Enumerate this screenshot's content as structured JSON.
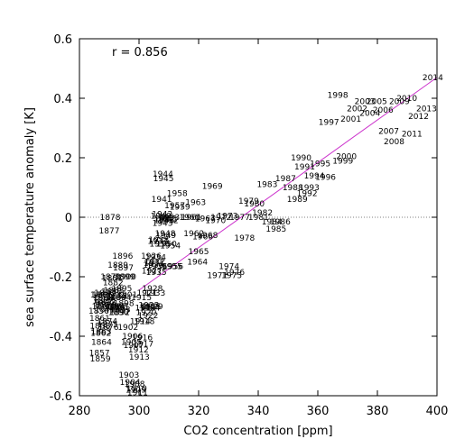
{
  "chart_data": {
    "type": "scatter",
    "title": "",
    "xlabel": "CO2 concentration [ppm]",
    "ylabel": "sea surface temperature anomaly [K]",
    "xlim": [
      280,
      400
    ],
    "ylim": [
      -0.6,
      0.6
    ],
    "xticks": [
      280,
      300,
      320,
      340,
      360,
      380,
      400
    ],
    "yticks": [
      -0.6,
      -0.4,
      -0.2,
      0,
      0.2,
      0.4,
      0.6
    ],
    "annotation": "r =  0.856",
    "zero_line": true,
    "grid": false,
    "colors": {
      "trend": "#cc33cc",
      "axis": "#000000",
      "zero_line": "#555555"
    },
    "trend_line": {
      "x": [
        300,
        400
      ],
      "y": [
        -0.245,
        0.47
      ]
    },
    "points": [
      {
        "label": "1856",
        "x": 286.5,
        "y": -0.315
      },
      {
        "label": "1857",
        "x": 286.7,
        "y": -0.456
      },
      {
        "label": "1858",
        "x": 286.9,
        "y": -0.365
      },
      {
        "label": "1859",
        "x": 287.0,
        "y": -0.475
      },
      {
        "label": "1860",
        "x": 287.1,
        "y": -0.26
      },
      {
        "label": "1861",
        "x": 286.8,
        "y": -0.34
      },
      {
        "label": "1862",
        "x": 287.2,
        "y": -0.39
      },
      {
        "label": "1863",
        "x": 287.3,
        "y": -0.385
      },
      {
        "label": "1864",
        "x": 287.4,
        "y": -0.42
      },
      {
        "label": "1865",
        "x": 287.6,
        "y": -0.3
      },
      {
        "label": "1866",
        "x": 287.7,
        "y": -0.26
      },
      {
        "label": "1867",
        "x": 287.9,
        "y": -0.28
      },
      {
        "label": "1868",
        "x": 288.0,
        "y": -0.27
      },
      {
        "label": "1869",
        "x": 288.2,
        "y": -0.29
      },
      {
        "label": "1870",
        "x": 288.4,
        "y": -0.255
      },
      {
        "label": "1871",
        "x": 288.6,
        "y": -0.31
      },
      {
        "label": "1872",
        "x": 288.8,
        "y": -0.285
      },
      {
        "label": "1873",
        "x": 289.0,
        "y": -0.295
      },
      {
        "label": "1874",
        "x": 289.3,
        "y": -0.35
      },
      {
        "label": "1875",
        "x": 289.5,
        "y": -0.36
      },
      {
        "label": "1876",
        "x": 289.7,
        "y": -0.37
      },
      {
        "label": "1877",
        "x": 290.0,
        "y": -0.045
      },
      {
        "label": "1878",
        "x": 290.3,
        "y": 0.0
      },
      {
        "label": "1879",
        "x": 290.5,
        "y": -0.2
      },
      {
        "label": "1880",
        "x": 290.8,
        "y": -0.25
      },
      {
        "label": "1881",
        "x": 291.0,
        "y": -0.205
      },
      {
        "label": "1882",
        "x": 291.3,
        "y": -0.22
      },
      {
        "label": "1883",
        "x": 291.5,
        "y": -0.245
      },
      {
        "label": "1884",
        "x": 291.7,
        "y": -0.3
      },
      {
        "label": "1885",
        "x": 292.0,
        "y": -0.305
      },
      {
        "label": "1886",
        "x": 292.2,
        "y": -0.27
      },
      {
        "label": "1887",
        "x": 292.4,
        "y": -0.3
      },
      {
        "label": "1888",
        "x": 292.6,
        "y": -0.265
      },
      {
        "label": "1889",
        "x": 292.9,
        "y": -0.16
      },
      {
        "label": "1890",
        "x": 293.1,
        "y": -0.32
      },
      {
        "label": "1891",
        "x": 293.3,
        "y": -0.3
      },
      {
        "label": "1892",
        "x": 293.5,
        "y": -0.32
      },
      {
        "label": "1893",
        "x": 293.7,
        "y": -0.31
      },
      {
        "label": "1894",
        "x": 294.0,
        "y": -0.27
      },
      {
        "label": "1895",
        "x": 294.2,
        "y": -0.24
      },
      {
        "label": "1896",
        "x": 294.5,
        "y": -0.13
      },
      {
        "label": "1897",
        "x": 294.7,
        "y": -0.17
      },
      {
        "label": "1898",
        "x": 294.9,
        "y": -0.29
      },
      {
        "label": "1899",
        "x": 295.2,
        "y": -0.2
      },
      {
        "label": "1900",
        "x": 295.6,
        "y": -0.2
      },
      {
        "label": "1901",
        "x": 296.0,
        "y": -0.26
      },
      {
        "label": "1902",
        "x": 296.3,
        "y": -0.37
      },
      {
        "label": "1903",
        "x": 296.6,
        "y": -0.53
      },
      {
        "label": "1904",
        "x": 297.0,
        "y": -0.555
      },
      {
        "label": "1905",
        "x": 297.4,
        "y": -0.42
      },
      {
        "label": "1906",
        "x": 297.8,
        "y": -0.4
      },
      {
        "label": "1907",
        "x": 298.2,
        "y": -0.43
      },
      {
        "label": "1908",
        "x": 298.5,
        "y": -0.56
      },
      {
        "label": "1909",
        "x": 298.9,
        "y": -0.58
      },
      {
        "label": "1910",
        "x": 299.2,
        "y": -0.575
      },
      {
        "label": "1911",
        "x": 299.5,
        "y": -0.59
      },
      {
        "label": "1912",
        "x": 299.8,
        "y": -0.445
      },
      {
        "label": "1913",
        "x": 300.1,
        "y": -0.47
      },
      {
        "label": "1914",
        "x": 300.4,
        "y": -0.35
      },
      {
        "label": "1915",
        "x": 300.8,
        "y": -0.27
      },
      {
        "label": "1916",
        "x": 301.1,
        "y": -0.405
      },
      {
        "label": "1917",
        "x": 301.4,
        "y": -0.425
      },
      {
        "label": "1918",
        "x": 301.8,
        "y": -0.35
      },
      {
        "label": "1919",
        "x": 302.1,
        "y": -0.305
      },
      {
        "label": "1920",
        "x": 302.4,
        "y": -0.32
      },
      {
        "label": "1921",
        "x": 302.7,
        "y": -0.255
      },
      {
        "label": "1922",
        "x": 303.0,
        "y": -0.33
      },
      {
        "label": "1923",
        "x": 303.3,
        "y": -0.295
      },
      {
        "label": "1924",
        "x": 303.6,
        "y": -0.305
      },
      {
        "label": "1925",
        "x": 303.9,
        "y": -0.3
      },
      {
        "label": "1926",
        "x": 304.1,
        "y": -0.13
      },
      {
        "label": "1927",
        "x": 304.3,
        "y": -0.18
      },
      {
        "label": "1928",
        "x": 304.5,
        "y": -0.24
      },
      {
        "label": "1929",
        "x": 304.6,
        "y": -0.3
      },
      {
        "label": "1930",
        "x": 304.8,
        "y": -0.16
      },
      {
        "label": "1931",
        "x": 305.0,
        "y": -0.155
      },
      {
        "label": "1932",
        "x": 305.2,
        "y": -0.15
      },
      {
        "label": "1933",
        "x": 305.4,
        "y": -0.255
      },
      {
        "label": "1934",
        "x": 305.6,
        "y": -0.135
      },
      {
        "label": "1935",
        "x": 305.8,
        "y": -0.185
      },
      {
        "label": "1936",
        "x": 306.0,
        "y": -0.165
      },
      {
        "label": "1937",
        "x": 306.3,
        "y": -0.08
      },
      {
        "label": "1938",
        "x": 306.6,
        "y": -0.075
      },
      {
        "label": "1939",
        "x": 306.9,
        "y": -0.09
      },
      {
        "label": "1940",
        "x": 307.3,
        "y": 0.005
      },
      {
        "label": "1941",
        "x": 307.6,
        "y": 0.06
      },
      {
        "label": "1942",
        "x": 307.8,
        "y": 0.01
      },
      {
        "label": "1943",
        "x": 307.9,
        "y": -0.02
      },
      {
        "label": "1944",
        "x": 308.0,
        "y": 0.145
      },
      {
        "label": "1945",
        "x": 308.2,
        "y": 0.13
      },
      {
        "label": "1946",
        "x": 308.4,
        "y": -0.01
      },
      {
        "label": "1947",
        "x": 308.6,
        "y": -0.005
      },
      {
        "label": "1948",
        "x": 308.8,
        "y": -0.055
      },
      {
        "label": "1949",
        "x": 309.0,
        "y": -0.06
      },
      {
        "label": "1950",
        "x": 309.2,
        "y": -0.09
      },
      {
        "label": "1951",
        "x": 309.5,
        "y": -0.005
      },
      {
        "label": "1952",
        "x": 309.8,
        "y": -0.01
      },
      {
        "label": "1953",
        "x": 310.2,
        "y": 0.0
      },
      {
        "label": "1954",
        "x": 310.5,
        "y": -0.095
      },
      {
        "label": "1955",
        "x": 311.0,
        "y": -0.165
      },
      {
        "label": "1956",
        "x": 311.4,
        "y": -0.165
      },
      {
        "label": "1957",
        "x": 312.0,
        "y": 0.04
      },
      {
        "label": "1958",
        "x": 312.8,
        "y": 0.08
      },
      {
        "label": "1959",
        "x": 313.7,
        "y": 0.035
      },
      {
        "label": "1960",
        "x": 316.9,
        "y": 0.0
      },
      {
        "label": "1961",
        "x": 317.6,
        "y": 0.0
      },
      {
        "label": "1962",
        "x": 318.4,
        "y": -0.055
      },
      {
        "label": "1963",
        "x": 319.0,
        "y": 0.05
      },
      {
        "label": "1964",
        "x": 319.6,
        "y": -0.15
      },
      {
        "label": "1965",
        "x": 320.0,
        "y": -0.115
      },
      {
        "label": "1966",
        "x": 321.4,
        "y": -0.065
      },
      {
        "label": "1967",
        "x": 322.2,
        "y": -0.005
      },
      {
        "label": "1968",
        "x": 323.0,
        "y": -0.06
      },
      {
        "label": "1969",
        "x": 324.6,
        "y": 0.105
      },
      {
        "label": "1970",
        "x": 325.7,
        "y": -0.01
      },
      {
        "label": "1971",
        "x": 326.3,
        "y": -0.195
      },
      {
        "label": "1972",
        "x": 327.5,
        "y": 0.0
      },
      {
        "label": "1973",
        "x": 329.7,
        "y": 0.005
      },
      {
        "label": "1974",
        "x": 330.2,
        "y": -0.165
      },
      {
        "label": "1975",
        "x": 331.1,
        "y": -0.195
      },
      {
        "label": "1976",
        "x": 332.0,
        "y": -0.185
      },
      {
        "label": "1977",
        "x": 333.8,
        "y": 0.0
      },
      {
        "label": "1978",
        "x": 335.4,
        "y": -0.07
      },
      {
        "label": "1979",
        "x": 336.8,
        "y": 0.055
      },
      {
        "label": "1980",
        "x": 338.7,
        "y": 0.045
      },
      {
        "label": "1981",
        "x": 340.1,
        "y": 0.0
      },
      {
        "label": "1982",
        "x": 341.4,
        "y": 0.015
      },
      {
        "label": "1983",
        "x": 343.0,
        "y": 0.11
      },
      {
        "label": "1984",
        "x": 344.6,
        "y": -0.015
      },
      {
        "label": "1985",
        "x": 346.0,
        "y": -0.04
      },
      {
        "label": "1986",
        "x": 347.4,
        "y": -0.015
      },
      {
        "label": "1987",
        "x": 349.2,
        "y": 0.13
      },
      {
        "label": "1988",
        "x": 351.6,
        "y": 0.1
      },
      {
        "label": "1989",
        "x": 353.1,
        "y": 0.06
      },
      {
        "label": "1990",
        "x": 354.4,
        "y": 0.2
      },
      {
        "label": "1991",
        "x": 355.6,
        "y": 0.17
      },
      {
        "label": "1992",
        "x": 356.4,
        "y": 0.08
      },
      {
        "label": "1993",
        "x": 357.1,
        "y": 0.1
      },
      {
        "label": "1994",
        "x": 358.8,
        "y": 0.14
      },
      {
        "label": "1995",
        "x": 360.8,
        "y": 0.18
      },
      {
        "label": "1996",
        "x": 362.6,
        "y": 0.135
      },
      {
        "label": "1997",
        "x": 363.7,
        "y": 0.32
      },
      {
        "label": "1998",
        "x": 366.7,
        "y": 0.41
      },
      {
        "label": "1999",
        "x": 368.4,
        "y": 0.19
      },
      {
        "label": "2000",
        "x": 369.6,
        "y": 0.205
      },
      {
        "label": "2001",
        "x": 371.1,
        "y": 0.33
      },
      {
        "label": "2002",
        "x": 373.2,
        "y": 0.365
      },
      {
        "label": "2003",
        "x": 375.8,
        "y": 0.39
      },
      {
        "label": "2004",
        "x": 377.5,
        "y": 0.35
      },
      {
        "label": "2005",
        "x": 379.8,
        "y": 0.39
      },
      {
        "label": "2006",
        "x": 381.9,
        "y": 0.36
      },
      {
        "label": "2007",
        "x": 383.8,
        "y": 0.29
      },
      {
        "label": "2008",
        "x": 385.6,
        "y": 0.255
      },
      {
        "label": "2009",
        "x": 387.4,
        "y": 0.39
      },
      {
        "label": "2010",
        "x": 389.9,
        "y": 0.4
      },
      {
        "label": "2011",
        "x": 391.6,
        "y": 0.28
      },
      {
        "label": "2012",
        "x": 393.8,
        "y": 0.34
      },
      {
        "label": "2013",
        "x": 396.5,
        "y": 0.365
      },
      {
        "label": "2014",
        "x": 398.6,
        "y": 0.47
      }
    ]
  }
}
